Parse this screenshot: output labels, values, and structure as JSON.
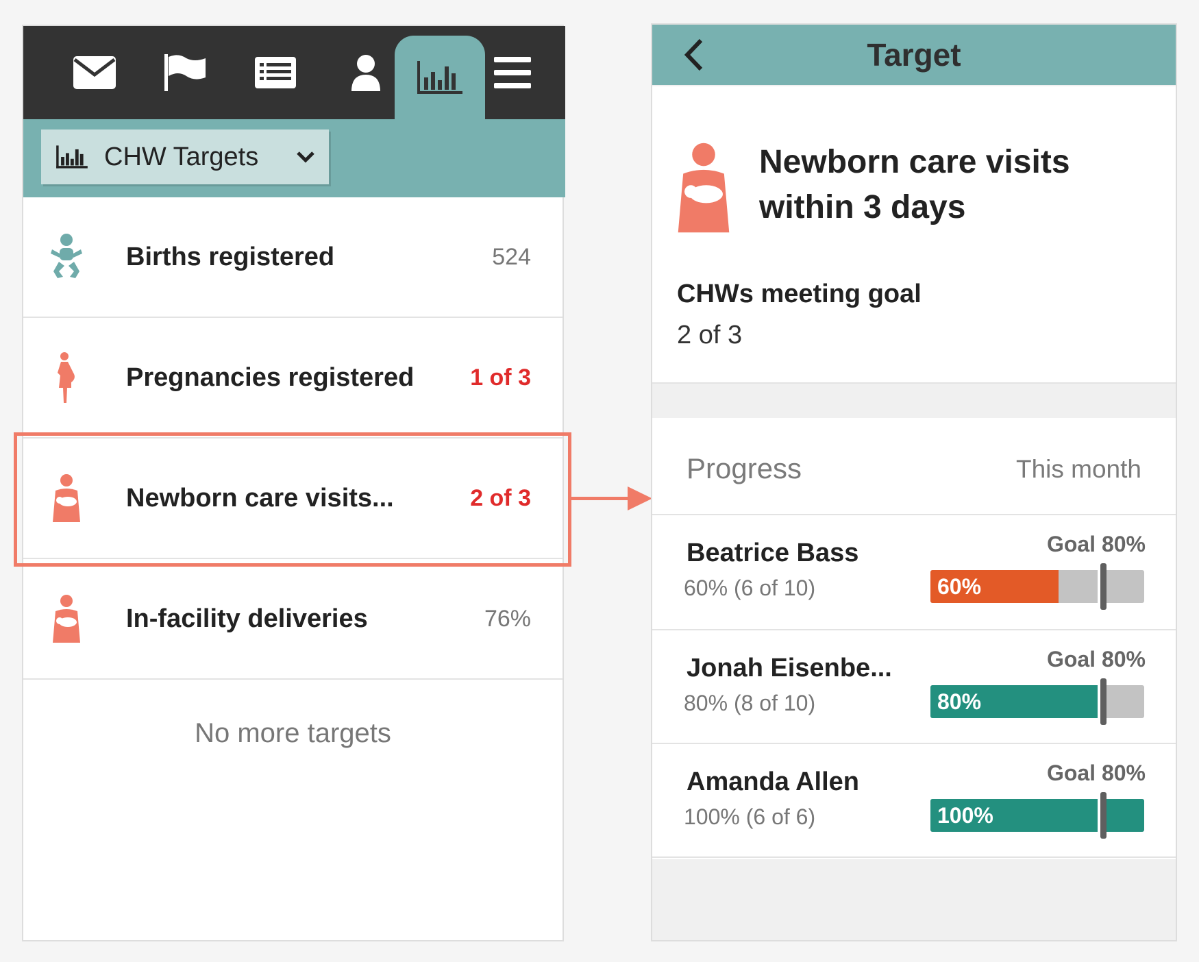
{
  "left_panel": {
    "nav_tabs": [
      {
        "icon": "envelope-icon",
        "label": "Messages"
      },
      {
        "icon": "flag-icon",
        "label": "Tasks"
      },
      {
        "icon": "report-list-icon",
        "label": "Reports"
      },
      {
        "icon": "person-icon",
        "label": "People"
      },
      {
        "icon": "bar-chart-icon",
        "label": "Targets",
        "active": true
      },
      {
        "icon": "menu-icon",
        "label": "Menu"
      }
    ],
    "filter": {
      "icon": "bar-chart-icon",
      "label": "CHW Targets"
    },
    "targets": [
      {
        "icon": "baby-icon",
        "label": "Births registered",
        "value": "524",
        "alert": false,
        "icon_color": "#6fabaa"
      },
      {
        "icon": "pregnant-woman-icon",
        "label": "Pregnancies registered",
        "value": "1 of 3",
        "alert": true,
        "icon_color": "#f07b67"
      },
      {
        "icon": "mother-newborn-icon",
        "label": "Newborn care visits...",
        "value": "2 of 3",
        "alert": true,
        "icon_color": "#f07b67",
        "highlighted": true
      },
      {
        "icon": "mother-newborn-icon",
        "label": "In-facility deliveries",
        "value": "76%",
        "alert": false,
        "icon_color": "#f07b67"
      }
    ],
    "footer_text": "No more targets"
  },
  "right_panel": {
    "header": {
      "title": "Target",
      "back_icon": "chevron-left-icon"
    },
    "summary": {
      "icon": "mother-newborn-icon",
      "title": "Newborn care visits within 3 days",
      "meeting_goal_label": "CHWs meeting goal",
      "meeting_goal_value": "2 of 3"
    },
    "progress": {
      "label": "Progress",
      "period": "This month",
      "rows": [
        {
          "name": "Beatrice Bass",
          "detail": "60% (6 of 10)",
          "goal_label": "Goal 80%",
          "percent": 60,
          "percent_label": "60%",
          "goal": 80,
          "fill_color": "#e35a27"
        },
        {
          "name": "Jonah Eisenbe...",
          "detail": "80% (8 of 10)",
          "goal_label": "Goal 80%",
          "percent": 80,
          "percent_label": "80%",
          "goal": 80,
          "fill_color": "#23907f"
        },
        {
          "name": "Amanda Allen",
          "detail": "100% (6 of 6)",
          "goal_label": "Goal 80%",
          "percent": 100,
          "percent_label": "100%",
          "goal": 80,
          "fill_color": "#23907f"
        }
      ]
    }
  },
  "colors": {
    "nav_dark": "#333333",
    "teal": "#78b1b0",
    "highlight": "#f07b67",
    "alert_red": "#e02b2b"
  }
}
